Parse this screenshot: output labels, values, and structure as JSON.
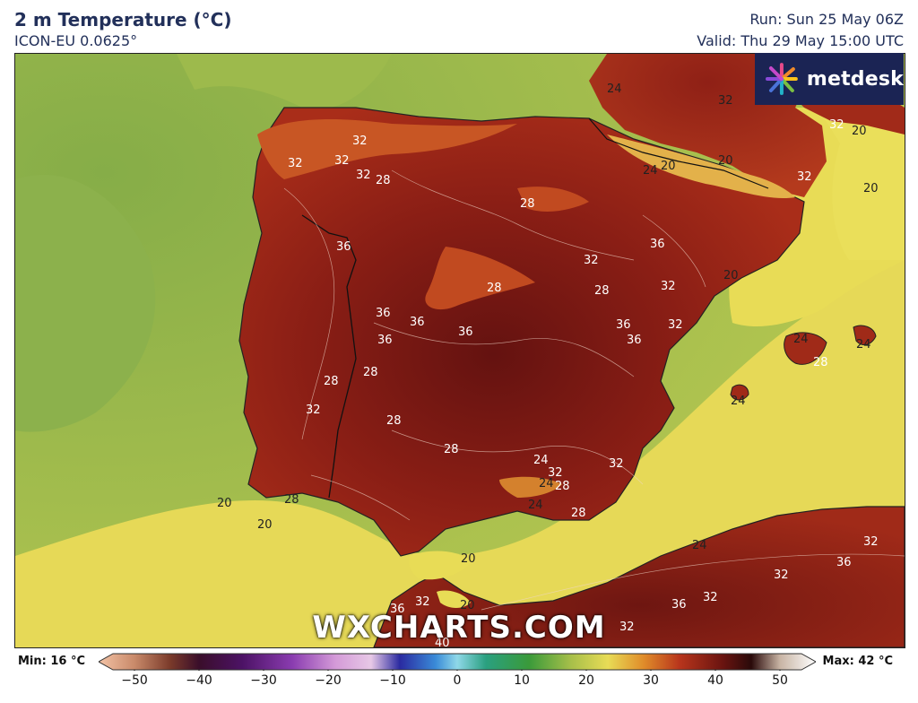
{
  "header": {
    "title": "2 m Temperature (°C)",
    "model": "ICON-EU 0.0625°",
    "run": "Run: Sun 25 May 06Z",
    "valid": "Valid: Thu 29 May 15:00 UTC"
  },
  "brand": {
    "name": "metdesk",
    "icon": "metdesk-logo-icon"
  },
  "watermark": "WXCHARTS.COM",
  "legend": {
    "min_label": "Min: 16 °C",
    "max_label": "Max: 42 °C",
    "ticks": [
      "−50",
      "−40",
      "−30",
      "−20",
      "−10",
      "0",
      "10",
      "20",
      "30",
      "40",
      "50"
    ]
  },
  "contour_labels": [
    {
      "id": "c1",
      "text": "32"
    },
    {
      "id": "c2",
      "text": "32"
    },
    {
      "id": "c3",
      "text": "32"
    },
    {
      "id": "c4",
      "text": "32"
    },
    {
      "id": "c5",
      "text": "28"
    },
    {
      "id": "c6",
      "text": "28"
    },
    {
      "id": "c7",
      "text": "36"
    },
    {
      "id": "c8",
      "text": "36"
    },
    {
      "id": "c9",
      "text": "32"
    },
    {
      "id": "c10",
      "text": "28"
    },
    {
      "id": "c11",
      "text": "28"
    },
    {
      "id": "c12",
      "text": "32"
    },
    {
      "id": "c13",
      "text": "36"
    },
    {
      "id": "c14",
      "text": "36"
    },
    {
      "id": "c15",
      "text": "36"
    },
    {
      "id": "c16",
      "text": "36"
    },
    {
      "id": "c17",
      "text": "36"
    },
    {
      "id": "c18",
      "text": "36"
    },
    {
      "id": "c19",
      "text": "32"
    },
    {
      "id": "c20",
      "text": "28"
    },
    {
      "id": "c21",
      "text": "28"
    },
    {
      "id": "c22",
      "text": "32"
    },
    {
      "id": "c23",
      "text": "28"
    },
    {
      "id": "c24",
      "text": "28"
    },
    {
      "id": "c25",
      "text": "24"
    },
    {
      "id": "c26",
      "text": "32"
    },
    {
      "id": "c27",
      "text": "32"
    },
    {
      "id": "c28",
      "text": "28"
    },
    {
      "id": "c29",
      "text": "28"
    },
    {
      "id": "c30",
      "text": "20"
    },
    {
      "id": "c31",
      "text": "20"
    },
    {
      "id": "c32",
      "text": "20"
    },
    {
      "id": "c33",
      "text": "24"
    },
    {
      "id": "c34",
      "text": "28"
    },
    {
      "id": "c35",
      "text": "24"
    },
    {
      "id": "c36",
      "text": "24"
    },
    {
      "id": "c37",
      "text": "20"
    },
    {
      "id": "c38",
      "text": "20"
    },
    {
      "id": "c39",
      "text": "20"
    },
    {
      "id": "c40",
      "text": "24"
    },
    {
      "id": "c41",
      "text": "32"
    },
    {
      "id": "c42",
      "text": "32"
    },
    {
      "id": "c43",
      "text": "32"
    },
    {
      "id": "c44",
      "text": "36"
    },
    {
      "id": "c45",
      "text": "36"
    },
    {
      "id": "c46",
      "text": "32"
    },
    {
      "id": "c47",
      "text": "32"
    },
    {
      "id": "c48",
      "text": "32"
    },
    {
      "id": "c49",
      "text": "20"
    },
    {
      "id": "c50",
      "text": "20"
    },
    {
      "id": "c51",
      "text": "20"
    },
    {
      "id": "c52",
      "text": "24"
    },
    {
      "id": "c53",
      "text": "24"
    },
    {
      "id": "c54",
      "text": "28"
    },
    {
      "id": "c55",
      "text": "24"
    },
    {
      "id": "c56",
      "text": "32"
    },
    {
      "id": "c57",
      "text": "40"
    },
    {
      "id": "c58",
      "text": "36"
    },
    {
      "id": "c59",
      "text": "32"
    },
    {
      "id": "c60",
      "text": "24"
    },
    {
      "id": "c61",
      "text": "20"
    }
  ],
  "palette": {
    "sea_green": "#a9c04a",
    "atlantic_green": "#8fb24a",
    "warm_yellow": "#e8dc56",
    "land_28": "#b8351c",
    "land_32": "#8e1f16",
    "land_36": "#6a1410",
    "cool_land": "#d97b2a"
  }
}
